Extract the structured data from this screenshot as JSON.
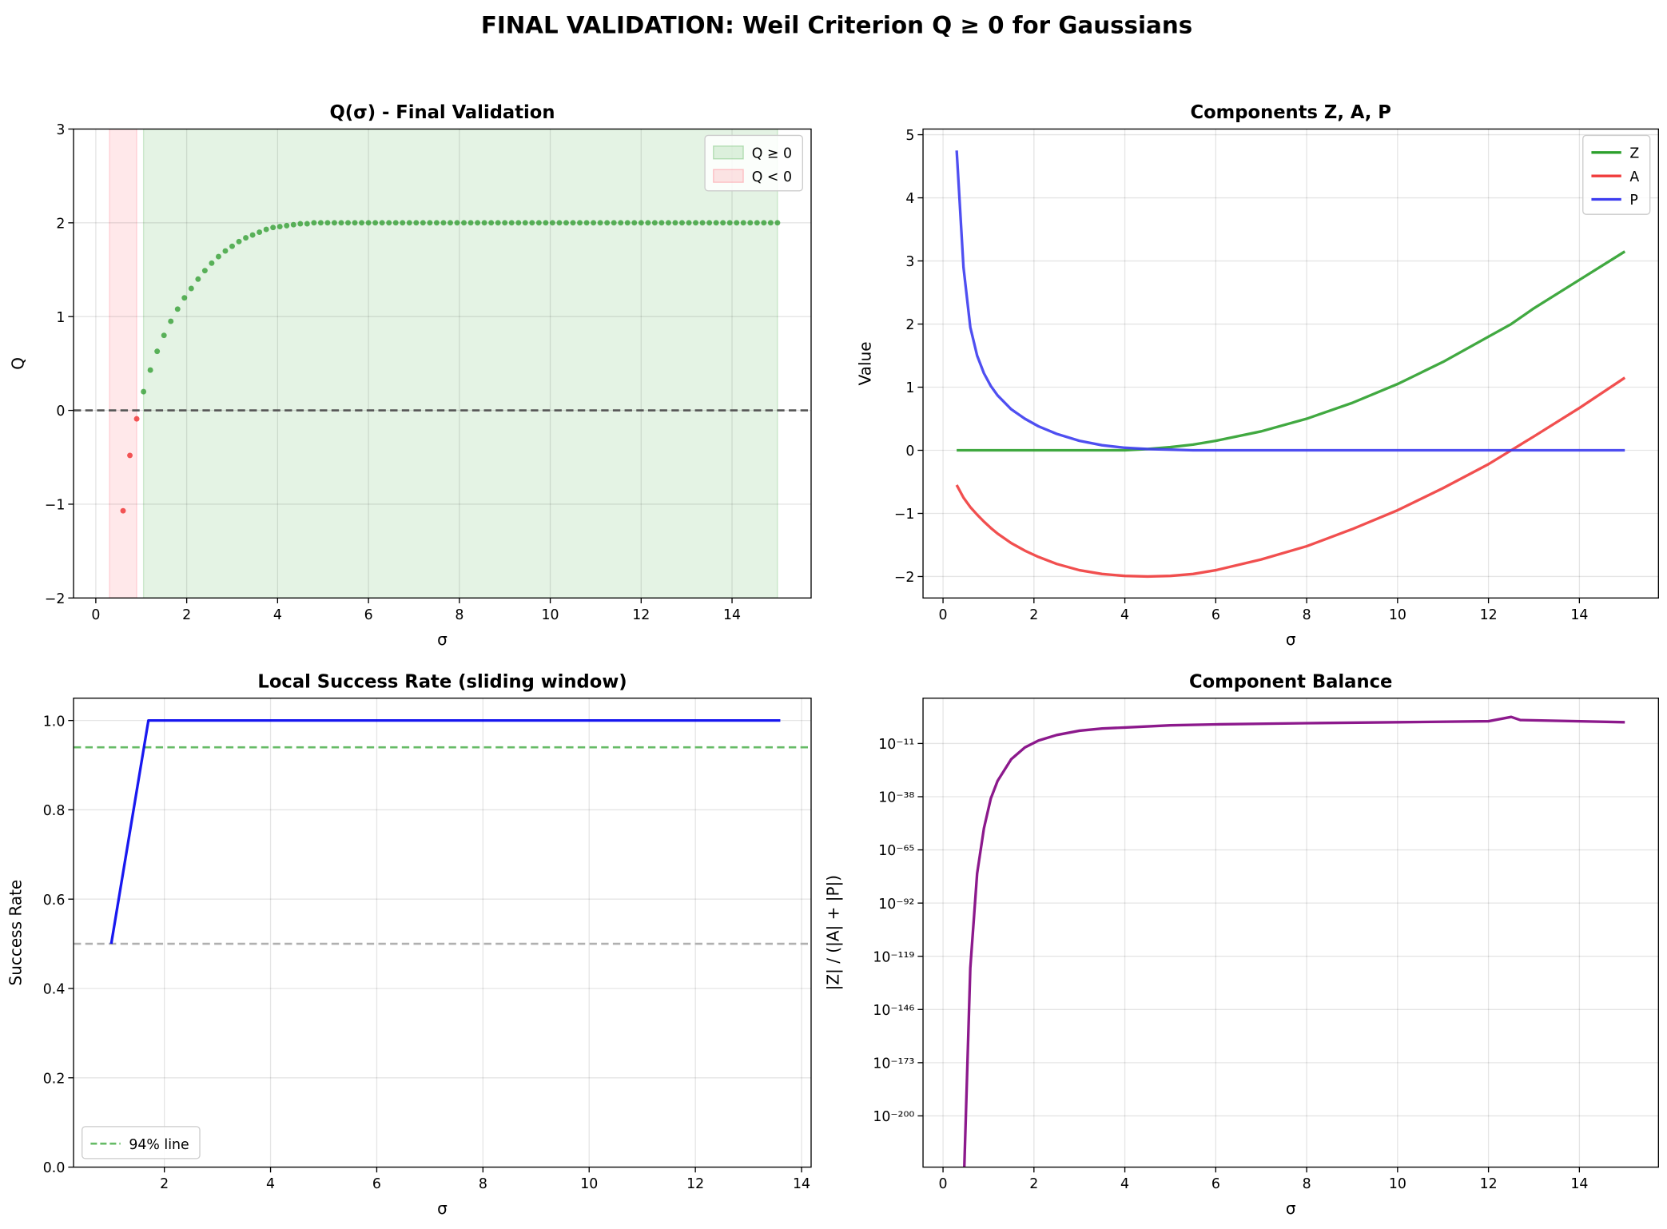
{
  "title": "FINAL VALIDATION: Weil Criterion Q ≥ 0 for Gaussians",
  "chart_data": [
    {
      "type": "scatter",
      "title": "Q(σ) - Final Validation",
      "x_label": "σ",
      "y_label": "Q",
      "xlim": [
        -0.49,
        15.74
      ],
      "ylim": [
        -2,
        3
      ],
      "xticks": [
        0,
        2,
        4,
        6,
        8,
        10,
        12,
        14
      ],
      "yticks": [
        {
          "value": -2,
          "label": "−2"
        },
        {
          "value": -1,
          "label": "−1"
        },
        0,
        1,
        2,
        3
      ],
      "grid": true,
      "legend": "upper right",
      "spans": [
        {
          "label": "Q ≥ 0",
          "range": [
            1.05,
            15
          ],
          "color": "#2ca02c"
        },
        {
          "label": "Q < 0",
          "range": [
            0.3,
            0.9
          ],
          "color": "#ff4d5e"
        }
      ],
      "hlines": [
        {
          "value": 0,
          "color": "#555555"
        }
      ],
      "series": [
        {
          "color": "#2a9a2a",
          "negative_color": "#ee2222",
          "x": [
            0.6,
            0.75,
            0.9,
            1.05,
            1.2,
            1.35,
            1.5,
            1.65,
            1.8,
            1.95,
            2.1,
            2.25,
            2.4,
            2.55,
            2.7,
            2.85,
            3,
            3.15,
            3.3,
            3.45,
            3.6,
            3.75,
            3.9,
            4.05,
            4.2,
            4.35,
            4.5,
            4.65,
            4.8,
            4.95,
            5.1,
            5.25,
            5.4,
            5.55,
            5.7,
            5.85,
            6,
            6.15,
            6.3,
            6.45,
            6.6,
            6.75,
            6.9,
            7.05,
            7.2,
            7.35,
            7.5,
            7.65,
            7.8,
            7.95,
            8.1,
            8.25,
            8.4,
            8.55,
            8.7,
            8.85,
            9,
            9.15,
            9.3,
            9.45,
            9.6,
            9.75,
            9.9,
            10.05,
            10.2,
            10.35,
            10.5,
            10.65,
            10.8,
            10.95,
            11.1,
            11.25,
            11.4,
            11.55,
            11.7,
            11.85,
            12,
            12.15,
            12.3,
            12.45,
            12.6,
            12.75,
            12.9,
            13.05,
            13.2,
            13.35,
            13.5,
            13.65,
            13.8,
            13.95,
            14.1,
            14.25,
            14.4,
            14.55,
            14.7,
            14.85,
            15
          ],
          "values": [
            -1.07,
            -0.48,
            -0.09,
            0.2,
            0.43,
            0.63,
            0.8,
            0.95,
            1.08,
            1.2,
            1.3,
            1.4,
            1.49,
            1.57,
            1.64,
            1.7,
            1.75,
            1.8,
            1.84,
            1.87,
            1.9,
            1.93,
            1.95,
            1.96,
            1.97,
            1.98,
            1.99,
            1.99,
            2,
            2,
            2,
            2,
            2,
            2,
            2,
            2,
            2,
            2,
            2,
            2,
            2,
            2,
            2,
            2,
            2,
            2,
            2,
            2,
            2,
            2,
            2,
            2,
            2,
            2,
            2,
            2,
            2,
            2,
            2,
            2,
            2,
            2,
            2,
            2,
            2,
            2,
            2,
            2,
            2,
            2,
            2,
            2,
            2,
            2,
            2,
            2,
            2,
            2,
            2,
            2,
            2,
            2,
            2,
            2,
            2,
            2,
            2,
            2,
            2,
            2,
            2,
            2,
            2,
            2,
            2,
            2,
            2
          ]
        }
      ]
    },
    {
      "type": "line",
      "title": "Components Z, A, P",
      "x_label": "σ",
      "y_label": "Value",
      "xlim": [
        -0.44,
        15.74
      ],
      "ylim": [
        -2.34,
        5.09
      ],
      "xticks": [
        0,
        2,
        4,
        6,
        8,
        10,
        12,
        14
      ],
      "yticks": [
        {
          "value": -2,
          "label": "−2"
        },
        {
          "value": -1,
          "label": "−1"
        },
        0,
        1,
        2,
        3,
        4,
        5
      ],
      "grid": true,
      "legend": "upper right",
      "x": [
        0.3,
        0.45,
        0.6,
        0.75,
        0.9,
        1.05,
        1.2,
        1.5,
        1.8,
        2.1,
        2.5,
        3,
        3.5,
        4,
        4.5,
        5,
        5.5,
        6,
        7,
        8,
        9,
        10,
        11,
        12,
        12.5,
        13,
        14,
        15
      ],
      "series": [
        {
          "name": "Z",
          "color": "#2ca02c",
          "values": [
            0,
            0,
            0,
            0,
            0,
            0,
            0,
            0,
            0,
            0,
            0,
            0,
            0,
            0,
            0.02,
            0.05,
            0.09,
            0.15,
            0.3,
            0.5,
            0.75,
            1.05,
            1.4,
            1.8,
            2.0,
            2.25,
            2.7,
            3.15
          ]
        },
        {
          "name": "A",
          "color": "#f03c3c",
          "values": [
            -0.55,
            -0.75,
            -0.9,
            -1.02,
            -1.13,
            -1.23,
            -1.32,
            -1.47,
            -1.59,
            -1.69,
            -1.8,
            -1.9,
            -1.96,
            -1.99,
            -2.0,
            -1.99,
            -1.96,
            -1.9,
            -1.73,
            -1.52,
            -1.25,
            -0.95,
            -0.6,
            -0.22,
            0.0,
            0.22,
            0.67,
            1.15
          ]
        },
        {
          "name": "P",
          "color": "#3c3cf0",
          "values": [
            4.75,
            2.9,
            1.95,
            1.5,
            1.22,
            1.02,
            0.87,
            0.65,
            0.5,
            0.38,
            0.26,
            0.15,
            0.08,
            0.04,
            0.02,
            0.01,
            0,
            0,
            0,
            0,
            0,
            0,
            0,
            0,
            0,
            0,
            0,
            0
          ]
        }
      ]
    },
    {
      "type": "line",
      "title": "Local Success Rate (sliding window)",
      "x_label": "σ",
      "y_label": "Success Rate",
      "xlim": [
        0.29,
        14.18
      ],
      "ylim": [
        0,
        1.05
      ],
      "xticks": [
        2,
        4,
        6,
        8,
        10,
        12,
        14
      ],
      "yticks": [
        {
          "value": 0,
          "label": "0.0"
        },
        {
          "value": 0.2,
          "label": "0.2"
        },
        {
          "value": 0.4,
          "label": "0.4"
        },
        {
          "value": 0.6,
          "label": "0.6"
        },
        {
          "value": 0.8,
          "label": "0.8"
        },
        {
          "value": 1,
          "label": "1.0"
        }
      ],
      "grid": true,
      "legend": "lower left",
      "hlines": [
        {
          "value": 0.94,
          "color": "#66bb66",
          "label": "94% line"
        },
        {
          "value": 0.5,
          "color": "#b0b0b0"
        }
      ],
      "x": [
        1.0,
        1.7,
        13.6
      ],
      "series": [
        {
          "color": "#0000ee",
          "values": [
            0.5,
            1.0,
            1.0
          ]
        }
      ]
    },
    {
      "type": "line",
      "title": "Component Balance",
      "x_label": "σ",
      "y_label": "|Z| / (|A| + |P|)",
      "xlim": [
        -0.44,
        15.74
      ],
      "ylim": [
        1e-226,
        1000000000000.0
      ],
      "log_y": true,
      "xticks": [
        0,
        2,
        4,
        6,
        8,
        10,
        12,
        14
      ],
      "yticks": [
        {
          "value": 1e-200,
          "label": "10⁻²⁰⁰"
        },
        {
          "value": 1e-173,
          "label": "10⁻¹⁷³"
        },
        {
          "value": 1e-146,
          "label": "10⁻¹⁴⁶"
        },
        {
          "value": 1e-119,
          "label": "10⁻¹¹⁹"
        },
        {
          "value": 1e-92,
          "label": "10⁻⁹²"
        },
        {
          "value": 1e-65,
          "label": "10⁻⁶⁵"
        },
        {
          "value": 1e-38,
          "label": "10⁻³⁸"
        },
        {
          "value": 1e-11,
          "label": "10⁻¹¹"
        }
      ],
      "grid": true,
      "x": [
        0.45,
        0.6,
        0.75,
        0.9,
        1.05,
        1.2,
        1.5,
        1.8,
        2.1,
        2.5,
        3,
        3.5,
        4,
        5,
        6,
        8,
        10,
        12,
        12.5,
        12.7,
        15
      ],
      "series": [
        {
          "color": "#800080",
          "values": [
            1e-240,
            1e-125,
            1e-77,
            1e-54,
            1e-39,
            1e-30,
            1e-19,
            1e-13,
            3e-10,
            2e-07,
            3e-05,
            0.0004,
            0.0013,
            0.016,
            0.05,
            0.2,
            0.6,
            2,
            300,
            8,
            0.6
          ]
        }
      ]
    }
  ]
}
